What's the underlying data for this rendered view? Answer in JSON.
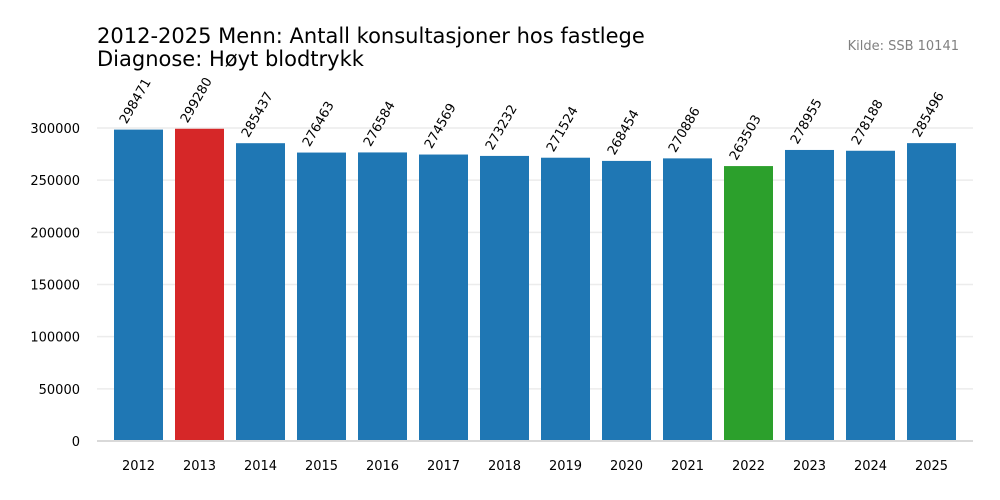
{
  "chart_data": {
    "type": "bar",
    "title_lines": [
      "2012-2025 Menn: Antall konsultasjoner hos fastlege",
      "Diagnose: Høyt blodtrykk"
    ],
    "source": "Kilde: SSB 10141",
    "categories": [
      "2012",
      "2013",
      "2014",
      "2015",
      "2016",
      "2017",
      "2018",
      "2019",
      "2020",
      "2021",
      "2022",
      "2023",
      "2024",
      "2025"
    ],
    "values": [
      298471,
      299280,
      285437,
      276463,
      276584,
      274569,
      273232,
      271524,
      268454,
      270886,
      263503,
      278955,
      278188,
      285496
    ],
    "ylim": [
      0,
      300000
    ],
    "yticks": [
      0,
      50000,
      100000,
      150000,
      200000,
      250000,
      300000
    ],
    "grid": true,
    "colors": {
      "default": "#1f77b4",
      "max": "#d62728",
      "min": "#2ca02c"
    },
    "highlight": {
      "max_index": 1,
      "min_index": 10
    }
  }
}
